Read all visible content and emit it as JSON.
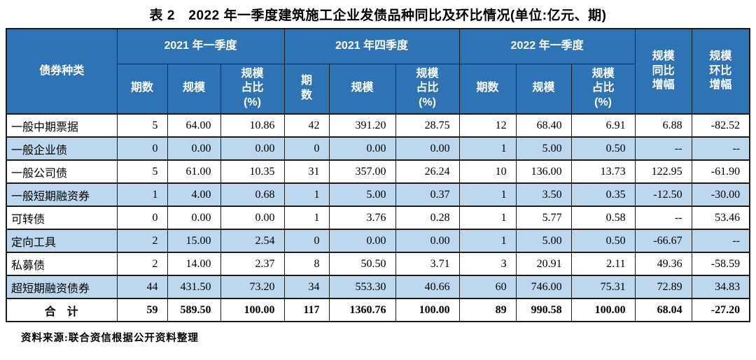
{
  "colors": {
    "header_bg": "#2E74B5",
    "header_text": "#FFFFFF",
    "row_alt_bg": "#BDD7EE",
    "border": "#1A1A1A",
    "text": "#000000"
  },
  "chart_data": {
    "type": "table",
    "title": "表 2　2022 年一季度建筑施工企业发债品种同比及环比情况(单位:亿元、期)",
    "corner_header": "债券种类",
    "groups": [
      {
        "label": "2021 年一季度",
        "sub": [
          "期数",
          "规模",
          "规模\n占比\n(%)"
        ]
      },
      {
        "label": "2021 年四季度",
        "sub": [
          "期\n数",
          "规模",
          "规模\n占比\n(%)"
        ]
      },
      {
        "label": "2022 年一季度",
        "sub": [
          "期数",
          "规模",
          "规模\n占比\n(%)"
        ]
      }
    ],
    "yoy_header": "规模\n同比\n增幅",
    "qoq_header": "规模\n环比\n增幅",
    "rows": [
      {
        "label": "一般中期票据",
        "highlight": false,
        "values": [
          "5",
          "64.00",
          "10.86",
          "42",
          "391.20",
          "28.75",
          "12",
          "68.40",
          "6.91",
          "6.88",
          "-82.52"
        ]
      },
      {
        "label": "一般企业债",
        "highlight": true,
        "values": [
          "0",
          "0.00",
          "0.00",
          "0",
          "0.00",
          "0.00",
          "1",
          "5.00",
          "0.50",
          "--",
          "--"
        ]
      },
      {
        "label": "一般公司债",
        "highlight": false,
        "values": [
          "5",
          "61.00",
          "10.35",
          "31",
          "357.00",
          "26.24",
          "10",
          "136.00",
          "13.73",
          "122.95",
          "-61.90"
        ]
      },
      {
        "label": "一般短期融资券",
        "highlight": true,
        "values": [
          "1",
          "4.00",
          "0.68",
          "1",
          "5.00",
          "0.37",
          "1",
          "3.50",
          "0.35",
          "-12.50",
          "-30.00"
        ]
      },
      {
        "label": "可转债",
        "highlight": false,
        "values": [
          "0",
          "0.00",
          "0.00",
          "1",
          "3.76",
          "0.28",
          "1",
          "5.77",
          "0.58",
          "--",
          "53.46"
        ]
      },
      {
        "label": "定向工具",
        "highlight": true,
        "values": [
          "2",
          "15.00",
          "2.54",
          "0",
          "0.00",
          "0.00",
          "1",
          "5.00",
          "0.50",
          "-66.67",
          "--"
        ]
      },
      {
        "label": "私募债",
        "highlight": false,
        "values": [
          "2",
          "14.00",
          "2.37",
          "8",
          "50.50",
          "3.71",
          "3",
          "20.91",
          "2.11",
          "49.36",
          "-58.59"
        ]
      },
      {
        "label": "超短期融资债券",
        "highlight": true,
        "values": [
          "44",
          "431.50",
          "73.20",
          "34",
          "553.30",
          "40.66",
          "60",
          "746.00",
          "75.31",
          "72.89",
          "34.83"
        ]
      }
    ],
    "total": {
      "label": "合　计",
      "values": [
        "59",
        "589.50",
        "100.00",
        "117",
        "1360.76",
        "100.00",
        "89",
        "990.58",
        "100.00",
        "68.04",
        "-27.20"
      ]
    },
    "source_note": "资料来源:联合资信根据公开资料整理"
  }
}
